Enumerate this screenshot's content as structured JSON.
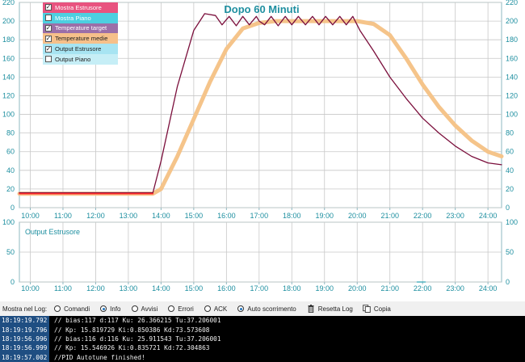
{
  "chart_data": [
    {
      "type": "line",
      "title": "Dopo 60 Minuti",
      "x_ticks": [
        "10:00",
        "11:00",
        "12:00",
        "13:00",
        "14:00",
        "15:00",
        "16:00",
        "17:00",
        "18:00",
        "19:00",
        "20:00",
        "21:00",
        "22:00",
        "23:00",
        "24:00"
      ],
      "y_ticks": [
        0,
        20,
        40,
        60,
        80,
        100,
        120,
        140,
        160,
        180,
        200,
        220
      ],
      "ylim": [
        0,
        220
      ],
      "xlim": [
        "09:40",
        "24:25"
      ],
      "grid": true,
      "series": [
        {
          "name": "Temperature medie",
          "color": "#f5c48a",
          "points": [
            [
              "09:40",
              15
            ],
            [
              "13:00",
              15
            ],
            [
              "13:45",
              15
            ],
            [
              "14:00",
              20
            ],
            [
              "14:30",
              55
            ],
            [
              "15:00",
              95
            ],
            [
              "15:30",
              135
            ],
            [
              "16:00",
              170
            ],
            [
              "16:30",
              192
            ],
            [
              "17:00",
              198
            ],
            [
              "17:30",
              200
            ],
            [
              "18:00",
              200
            ],
            [
              "19:00",
              200
            ],
            [
              "20:00",
              200
            ],
            [
              "20:30",
              197
            ],
            [
              "21:00",
              185
            ],
            [
              "21:30",
              160
            ],
            [
              "22:00",
              132
            ],
            [
              "22:30",
              108
            ],
            [
              "23:00",
              88
            ],
            [
              "23:30",
              72
            ],
            [
              "24:00",
              60
            ],
            [
              "24:25",
              55
            ]
          ]
        },
        {
          "name": "Temperature target",
          "color": "#7b0f3c",
          "points": [
            [
              "09:40",
              16
            ],
            [
              "13:00",
              16
            ],
            [
              "13:45",
              16
            ],
            [
              "14:00",
              50
            ],
            [
              "14:30",
              130
            ],
            [
              "15:00",
              190
            ],
            [
              "15:20",
              208
            ],
            [
              "15:40",
              206
            ],
            [
              "15:52",
              196
            ],
            [
              "16:05",
              205
            ],
            [
              "16:18",
              195
            ],
            [
              "16:30",
              205
            ],
            [
              "16:42",
              196
            ],
            [
              "16:55",
              205
            ],
            [
              "17:00",
              200
            ],
            [
              "17:10",
              196
            ],
            [
              "17:22",
              205
            ],
            [
              "17:35",
              195
            ],
            [
              "17:48",
              205
            ],
            [
              "18:00",
              196
            ],
            [
              "18:12",
              205
            ],
            [
              "18:25",
              196
            ],
            [
              "18:38",
              205
            ],
            [
              "18:50",
              196
            ],
            [
              "19:02",
              205
            ],
            [
              "19:15",
              196
            ],
            [
              "19:28",
              205
            ],
            [
              "19:40",
              196
            ],
            [
              "19:52",
              205
            ],
            [
              "20:05",
              190
            ],
            [
              "20:30",
              168
            ],
            [
              "21:00",
              140
            ],
            [
              "21:30",
              117
            ],
            [
              "22:00",
              96
            ],
            [
              "22:30",
              80
            ],
            [
              "23:00",
              66
            ],
            [
              "23:30",
              55
            ],
            [
              "24:00",
              48
            ],
            [
              "24:25",
              46
            ]
          ]
        },
        {
          "name": "Mostra Estrusore",
          "color": "#ff2a2a",
          "points": [
            [
              "09:40",
              15
            ],
            [
              "13:45",
              15
            ]
          ]
        }
      ]
    },
    {
      "type": "line",
      "title": "Output Estrusore",
      "x_ticks": [
        "10:00",
        "11:00",
        "12:00",
        "13:00",
        "14:00",
        "15:00",
        "16:00",
        "17:00",
        "18:00",
        "19:00",
        "20:00",
        "21:00",
        "22:00",
        "23:00",
        "24:00"
      ],
      "y_ticks": [
        0,
        50,
        100
      ],
      "ylim": [
        0,
        100
      ],
      "xlim": [
        "09:40",
        "24:25"
      ],
      "grid": true,
      "series": [
        {
          "name": "Output Estrusore",
          "color": "#2fa5b5",
          "points": [
            [
              "21:50",
              0
            ],
            [
              "22:05",
              0
            ]
          ]
        }
      ]
    }
  ],
  "legend": {
    "items": [
      {
        "label": "Mostra Estrusore",
        "checked": true,
        "bg": "#e8537f",
        "text_color": "#ffffff"
      },
      {
        "label": "Mostra Piano",
        "checked": false,
        "bg": "#4dcfe0",
        "text_color": "#ffffff"
      },
      {
        "label": "Temperature target",
        "checked": true,
        "bg": "#9b6fa8",
        "text_color": "#ffffff"
      },
      {
        "label": "Temperature medie",
        "checked": true,
        "bg": "#f6c08a",
        "text_color": "#222222"
      },
      {
        "label": "Output Estrusore",
        "checked": true,
        "bg": "#a7e4f2",
        "text_color": "#222222"
      },
      {
        "label": "Output Piano",
        "checked": false,
        "bg": "#c6eef6",
        "text_color": "#222222"
      }
    ]
  },
  "log_toolbar": {
    "label": "Mostra nel Log:",
    "options": [
      {
        "label": "Comandi",
        "selected": false
      },
      {
        "label": "Info",
        "selected": true
      },
      {
        "label": "Avvisi",
        "selected": false
      },
      {
        "label": "Errori",
        "selected": false
      },
      {
        "label": "ACK",
        "selected": false
      },
      {
        "label": "Auto scorrimento",
        "selected": true
      }
    ],
    "reset_label": "Resetta Log",
    "reset_icon": "trash-icon",
    "copy_label": "Copia",
    "copy_icon": "copy-icon"
  },
  "log": [
    {
      "time": "18:19:19.792",
      "text": "// bias:117 d:117 Ku: 26.366215 Tu:37.206001"
    },
    {
      "time": "18:19:19.796",
      "text": "// Kp: 15.819729 Ki:0.850386 Kd:73.573608"
    },
    {
      "time": "18:19:56.996",
      "text": "// bias:116 d:116 Ku: 25.911543 Tu:37.206001"
    },
    {
      "time": "18:19:56.999",
      "text": "// Kp: 15.546926 Ki:0.835721 Kd:72.304863"
    },
    {
      "time": "18:19:57.002",
      "text": "//PID Autotune finished!"
    }
  ],
  "colors": {
    "axis_text": "#1e8fa0",
    "grid": "#c8c8c8",
    "log_bg": "#000000",
    "timestamp_bg": "#1f4e82"
  }
}
